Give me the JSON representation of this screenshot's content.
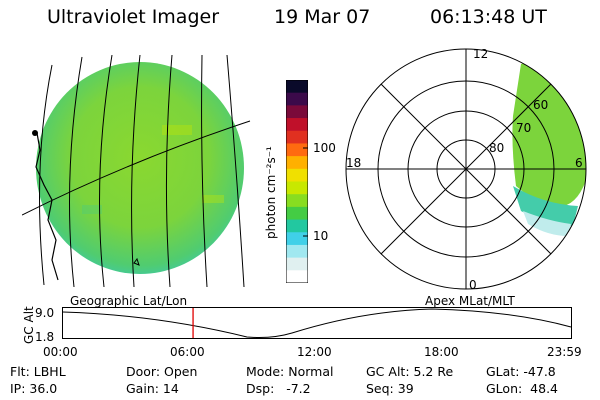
{
  "header": {
    "title": "Ultraviolet Imager",
    "date": "19 Mar 07",
    "time": "06:13:48 UT"
  },
  "colorbar": {
    "label": "photon cm⁻²s⁻¹",
    "ticks": [
      "100",
      "10"
    ],
    "colors": [
      "#0a0a2a",
      "#3b0a4a",
      "#7a0a3a",
      "#c0102a",
      "#e03020",
      "#ff6a10",
      "#ffb000",
      "#f0e000",
      "#c8e800",
      "#88dd20",
      "#44cc44",
      "#22c8a0",
      "#40d0e8",
      "#a0e8f0",
      "#e0f0f0",
      "#ffffff"
    ]
  },
  "left_panel": {
    "caption": "Geographic Lat/Lon"
  },
  "right_panel": {
    "caption": "Apex MLat/MLT",
    "mlt_labels": {
      "top": "12",
      "left": "18",
      "right": "6",
      "bottom": "0"
    },
    "lat_labels": [
      "60",
      "70",
      "80"
    ]
  },
  "altitude_strip": {
    "axis_label": "GC Alt",
    "y_ticks": [
      "9.0",
      "1.8"
    ],
    "x_ticks": [
      "00:00",
      "06:00",
      "12:00",
      "18:00",
      "23:59"
    ],
    "current_time_fraction": 0.2565
  },
  "status": {
    "flt": "Flt: LBHL",
    "ip": "IP: 36.0",
    "door": "Door: Open",
    "gain": "Gain: 14",
    "mode": "Mode: Normal",
    "dsp": "Dsp:   -7.2",
    "gc_alt": "GC Alt: 5.2 Re",
    "seq": "Seq: 39",
    "glat": "GLat: -47.8",
    "glon": "GLon:  48.4"
  }
}
